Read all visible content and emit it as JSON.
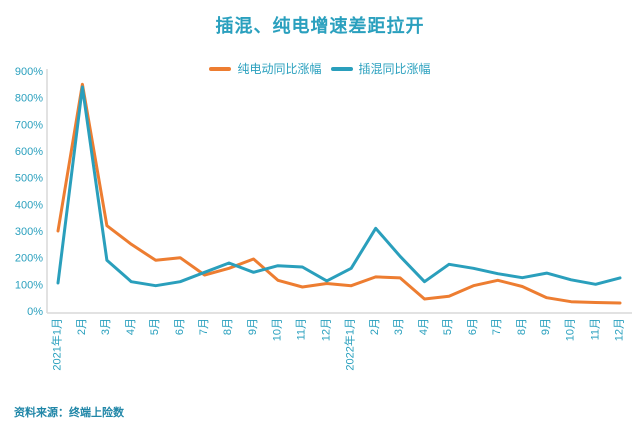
{
  "title": "插混、纯电增速差距拉开",
  "source": "资料来源：终端上险数",
  "colors": {
    "accent_teal": "#2AA0BE",
    "series_orange": "#ED7D31",
    "series_teal": "#2A9FBC",
    "axis_gray": "#D9D9D9",
    "source_teal": "#2187A8"
  },
  "chart_data": {
    "type": "line",
    "title": "插混、纯电增速差距拉开",
    "categories": [
      "2021年1月",
      "2月",
      "3月",
      "4月",
      "5月",
      "6月",
      "7月",
      "8月",
      "9月",
      "10月",
      "11月",
      "12月",
      "2022年1月",
      "2月",
      "3月",
      "4月",
      "5月",
      "6月",
      "7月",
      "8月",
      "9月",
      "10月",
      "11月",
      "12月"
    ],
    "series": [
      {
        "id": "bev-line",
        "name": "纯电动同比涨幅",
        "color": "#ED7D31",
        "values": [
          300,
          850,
          320,
          250,
          190,
          200,
          135,
          160,
          195,
          115,
          90,
          103,
          95,
          128,
          124,
          45,
          55,
          95,
          115,
          92,
          50,
          35,
          32,
          30
        ]
      },
      {
        "id": "phev-line",
        "name": "插混同比涨幅",
        "color": "#2A9FBC",
        "values": [
          105,
          840,
          190,
          110,
          95,
          110,
          145,
          180,
          145,
          170,
          165,
          113,
          160,
          310,
          205,
          110,
          175,
          160,
          140,
          125,
          142,
          117,
          100,
          124
        ]
      }
    ],
    "ylim": [
      0,
      900
    ],
    "ytick_step": 100,
    "yticks": [
      "900%",
      "800%",
      "700%",
      "600%",
      "500%",
      "400%",
      "300%",
      "200%",
      "100%",
      "0%"
    ],
    "xlabel": "",
    "ylabel": "",
    "grid": false,
    "legend_position": "top-center",
    "x_tick_rotation": -90
  }
}
